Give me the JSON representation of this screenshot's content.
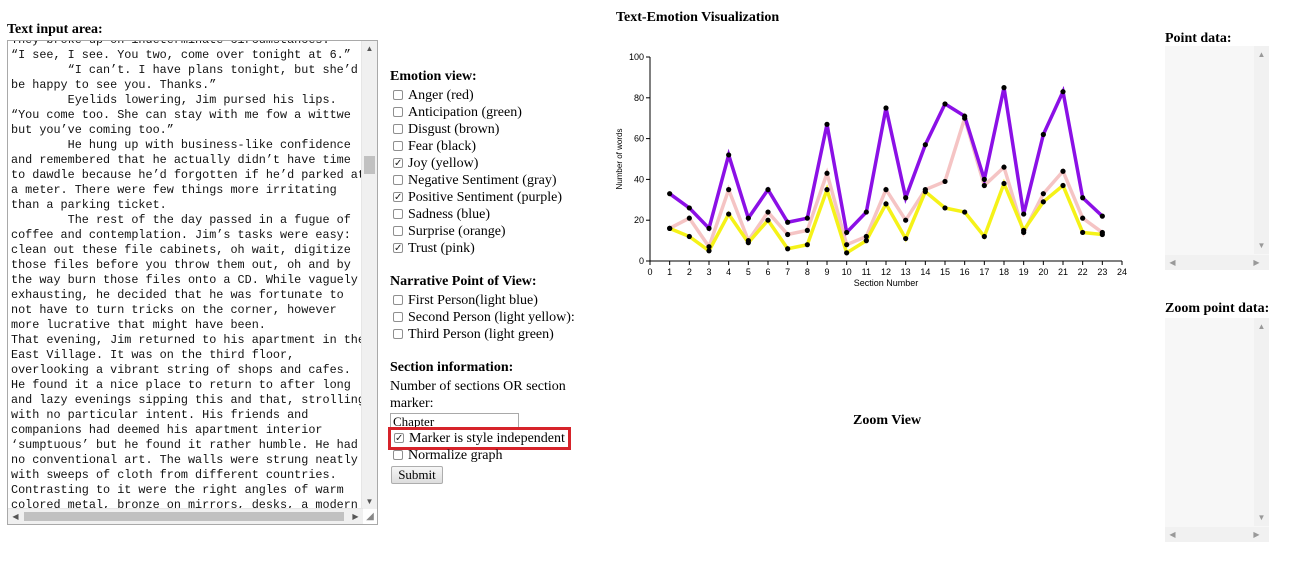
{
  "text_input": {
    "label": "Text input area:",
    "content": "They broke up on indeterminate circumstances.\n“I see, I see. You two, come over tonight at 6.”\n        “I can’t. I have plans tonight, but she’d be happy to see you. Thanks.”\n        Eyelids lowering, Jim pursed his lips.\n“You come too. She can stay with me fow a wittwe but you’ve coming too.”\n        He hung up with business-like confidence and remembered that he actually didn’t have time to dawdle because he’d forgotten if he’d parked at a meter. There were few things more irritating than a parking ticket.\n        The rest of the day passed in a fugue of coffee and contemplation. Jim’s tasks were easy: clean out these file cabinets, oh wait, digitize those files before you throw them out, oh and by the way burn those files onto a CD. While vaguely exhausting, he decided that he was fortunate to not have to turn tricks on the corner, however more lucrative that might have been.\nThat evening, Jim returned to his apartment in the East Village. It was on the third floor, overlooking a vibrant string of shops and cafes. He found it a nice place to return to after long and lazy evenings sipping this and that, strolling with no particular intent. His friends and companions had deemed his apartment interior ‘sumptuous’ but he found it rather humble. He had no conventional art. The walls were strung neatly with sweeps of cloth from different countries. Contrasting to it were the right angles of warm colored metal, bronze on mirrors, desks, a modern"
  },
  "emotion_view": {
    "heading": "Emotion view:",
    "options": [
      {
        "label": "Anger (red)",
        "checked": false
      },
      {
        "label": "Anticipation (green)",
        "checked": false
      },
      {
        "label": "Disgust (brown)",
        "checked": false
      },
      {
        "label": "Fear (black)",
        "checked": false
      },
      {
        "label": "Joy (yellow)",
        "checked": true
      },
      {
        "label": "Negative Sentiment (gray)",
        "checked": false
      },
      {
        "label": "Positive Sentiment (purple)",
        "checked": true
      },
      {
        "label": "Sadness (blue)",
        "checked": false
      },
      {
        "label": "Surprise (orange)",
        "checked": false
      },
      {
        "label": "Trust (pink)",
        "checked": true
      }
    ]
  },
  "pov_view": {
    "heading": "Narrative Point of View:",
    "options": [
      {
        "label": "First Person(light blue)",
        "checked": false
      },
      {
        "label": "Second Person (light yellow):",
        "checked": false
      },
      {
        "label": "Third Person (light green)",
        "checked": false
      }
    ]
  },
  "section_info": {
    "heading": "Section information:",
    "description": "Number of sections OR section marker:",
    "marker_value": "Chapter",
    "marker_style_label": "Marker is style independent",
    "marker_style_checked": true,
    "normalize_label": "Normalize graph",
    "normalize_checked": false,
    "submit_label": "Submit"
  },
  "visualization": {
    "title": "Text-Emotion Visualization",
    "zoom_title": "Zoom View"
  },
  "side": {
    "point_data_label": "Point data:",
    "zoom_point_data_label": "Zoom point data:"
  },
  "chart_data": {
    "type": "line",
    "xlabel": "Section Number",
    "ylabel": "Number of words",
    "xlim": [
      0,
      24
    ],
    "ylim": [
      0,
      100
    ],
    "x_ticks": [
      0,
      1,
      2,
      3,
      4,
      5,
      6,
      7,
      8,
      9,
      10,
      11,
      12,
      13,
      14,
      15,
      16,
      17,
      18,
      19,
      20,
      21,
      22,
      23,
      24
    ],
    "y_ticks": [
      0,
      20,
      40,
      60,
      80,
      100
    ],
    "x": [
      1,
      2,
      3,
      4,
      5,
      6,
      7,
      8,
      9,
      10,
      11,
      12,
      13,
      14,
      15,
      16,
      17,
      18,
      19,
      20,
      21,
      22,
      23
    ],
    "series": [
      {
        "color": "#8b10e6",
        "values": [
          33,
          26,
          16,
          52,
          21,
          35,
          19,
          21,
          67,
          14,
          24,
          75,
          31,
          57,
          77,
          71,
          40,
          85,
          23,
          62,
          83,
          31,
          22
        ]
      },
      {
        "color": "#f5c4c4",
        "values": [
          16,
          21,
          7,
          35,
          10,
          24,
          13,
          15,
          43,
          8,
          12,
          35,
          20,
          35,
          39,
          70,
          37,
          46,
          14,
          33,
          44,
          21,
          14
        ]
      },
      {
        "color": "#f5f218",
        "values": [
          16,
          12,
          5,
          23,
          9,
          20,
          6,
          8,
          35,
          4,
          10,
          28,
          11,
          34,
          26,
          24,
          12,
          38,
          15,
          29,
          37,
          14,
          13
        ]
      }
    ]
  }
}
